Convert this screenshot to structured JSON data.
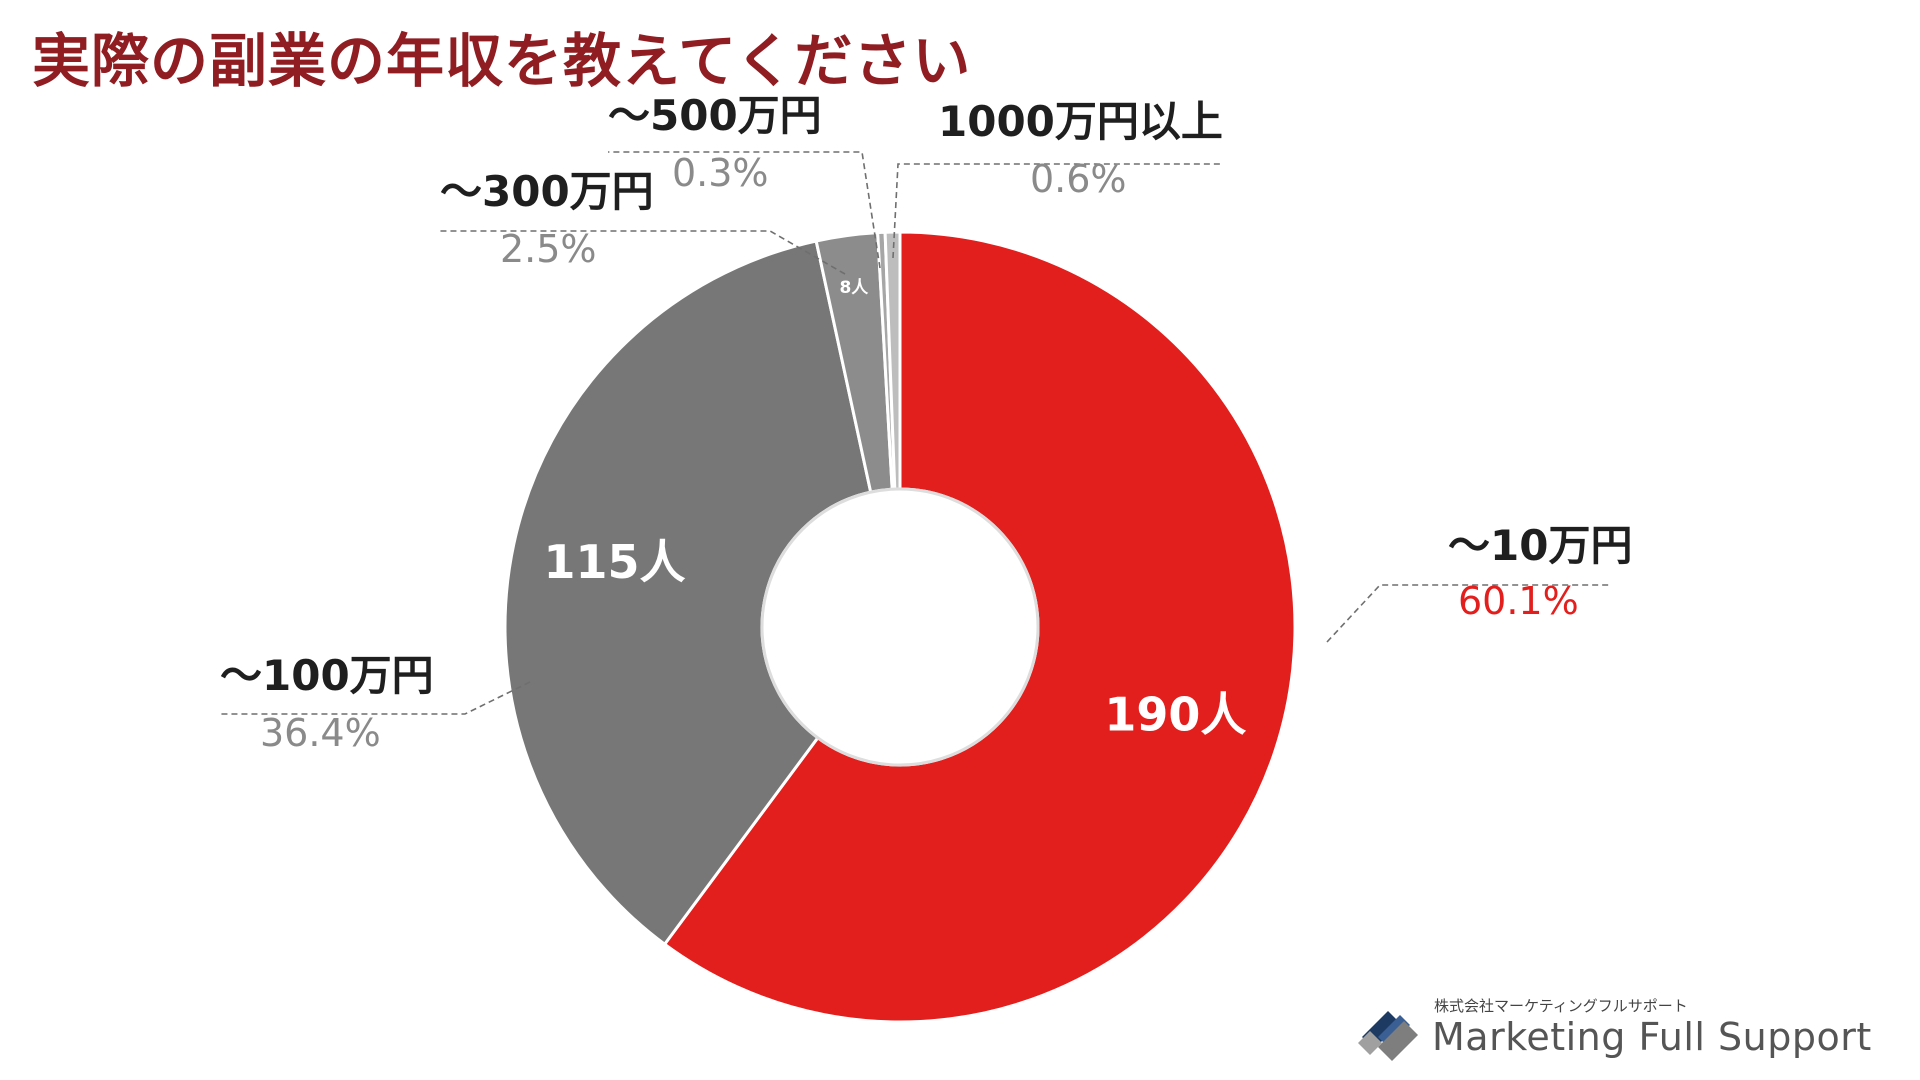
{
  "title": "実際の副業の年収を教えてください",
  "chart_data": {
    "type": "pie",
    "variant": "donut",
    "title": "実際の副業の年収を教えてください",
    "slices": [
      {
        "category": "〜10万円",
        "percent": 60.1,
        "percent_label": "60.1%",
        "count": 190,
        "count_label": "190人",
        "color": "#e21f1c"
      },
      {
        "category": "〜100万円",
        "percent": 36.4,
        "percent_label": "36.4%",
        "count": 115,
        "count_label": "115人",
        "color": "#777777"
      },
      {
        "category": "〜300万円",
        "percent": 2.5,
        "percent_label": "2.5%",
        "count": 8,
        "count_label": "8人",
        "color": "#8c8c8c"
      },
      {
        "category": "〜500万円",
        "percent": 0.3,
        "percent_label": "0.3%",
        "count": null,
        "count_label": "",
        "color": "#a6a6a6"
      },
      {
        "category": "1000万円以上",
        "percent": 0.6,
        "percent_label": "0.6%",
        "count": null,
        "count_label": "",
        "color": "#bdbdbd"
      }
    ],
    "highlight_percent_color": "#e21f1c",
    "other_percent_color": "#8a8a8a"
  },
  "logo": {
    "company": "株式会社マーケティングフルサポート",
    "name": "Marketing Full Support",
    "icon": "mfs-logo-icon"
  }
}
